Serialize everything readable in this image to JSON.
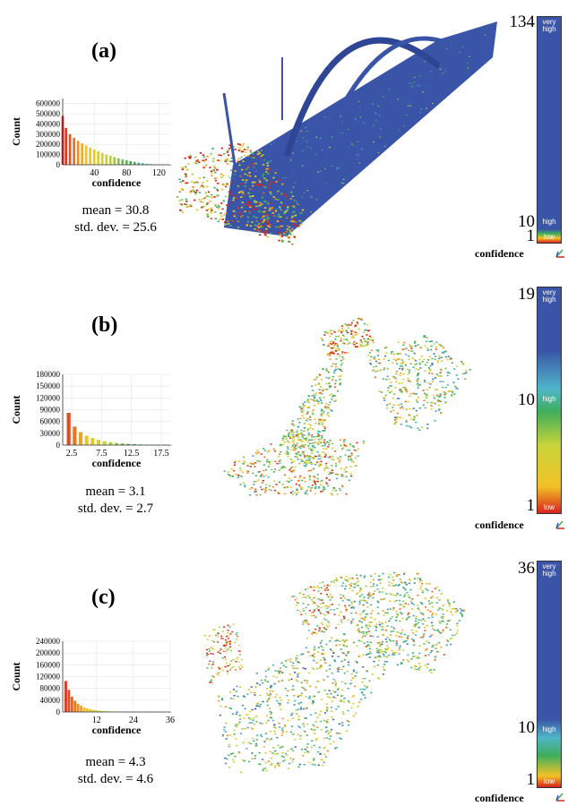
{
  "colors": {
    "high": "#3a55a8",
    "mid_high": "#4fb5c8",
    "mid": "#3fae5a",
    "mid_low": "#c8d43a",
    "low_yellow": "#f2c227",
    "low": "#d8231d",
    "cloud_edge": "#b8261c"
  },
  "colorbar_common": {
    "label": "confidence",
    "very_high_label": "very high",
    "high_label": "high",
    "low_label": "low"
  },
  "panels": [
    {
      "label": "(a)",
      "stats": {
        "mean": "mean = 30.8",
        "std": "std. dev. = 25.6"
      },
      "colorbar": {
        "max": "134",
        "mid": "10",
        "min": "1"
      },
      "scene": "bridge-arch"
    },
    {
      "label": "(b)",
      "stats": {
        "mean": "mean = 3.1",
        "std": "std. dev. = 2.7"
      },
      "colorbar": {
        "max": "19",
        "mid": "10",
        "min": "1"
      },
      "scene": "sparse"
    },
    {
      "label": "(c)",
      "stats": {
        "mean": "mean = 4.3",
        "std": "std. dev. = 4.6"
      },
      "colorbar": {
        "max": "36",
        "mid": "10",
        "min": "1"
      },
      "scene": "medium"
    }
  ],
  "chart_data": [
    {
      "type": "bar",
      "xlabel": "confidence",
      "ylabel": "Count",
      "xlim": [
        1,
        134
      ],
      "ylim": [
        0,
        650000
      ],
      "x_ticks": [
        40,
        80,
        120
      ],
      "y_ticks": [
        0,
        100000,
        200000,
        300000,
        400000,
        500000,
        600000
      ],
      "x": [
        1,
        5,
        10,
        15,
        20,
        25,
        30,
        35,
        40,
        45,
        50,
        55,
        60,
        65,
        70,
        75,
        80,
        85,
        90,
        95,
        100,
        105,
        110,
        115,
        120,
        125,
        130,
        134
      ],
      "values": [
        480000,
        360000,
        300000,
        265000,
        235000,
        210000,
        190000,
        170000,
        150000,
        132000,
        115000,
        100000,
        88000,
        75000,
        64000,
        54000,
        44000,
        36000,
        28000,
        21000,
        15000,
        10000,
        6000,
        3500,
        2000,
        1000,
        500,
        200
      ]
    },
    {
      "type": "bar",
      "xlabel": "confidence",
      "ylabel": "Count",
      "xlim": [
        1,
        19
      ],
      "ylim": [
        0,
        180000
      ],
      "x_ticks": [
        2.5,
        7.5,
        12.5,
        17.5
      ],
      "y_ticks": [
        0,
        30000,
        60000,
        90000,
        120000,
        150000,
        180000
      ],
      "x": [
        2,
        3,
        4,
        5,
        6,
        7,
        8,
        9,
        10,
        11,
        12,
        13,
        14,
        15,
        16,
        17,
        18,
        19
      ],
      "values": [
        82000,
        47000,
        33000,
        24000,
        18000,
        13500,
        10000,
        7500,
        5500,
        4000,
        3000,
        2200,
        1600,
        1200,
        900,
        600,
        400,
        250
      ]
    },
    {
      "type": "bar",
      "xlabel": "confidence",
      "ylabel": "Count",
      "xlim": [
        1,
        36
      ],
      "ylim": [
        0,
        240000
      ],
      "x_ticks": [
        12,
        24,
        36
      ],
      "y_ticks": [
        0,
        40000,
        80000,
        120000,
        160000,
        200000,
        240000
      ],
      "x": [
        2,
        3,
        4,
        5,
        6,
        7,
        8,
        9,
        10,
        11,
        12,
        13,
        14,
        15,
        16,
        17,
        18,
        20,
        22,
        24,
        26,
        28,
        30,
        32,
        34,
        36
      ],
      "values": [
        105000,
        75000,
        52000,
        38000,
        28000,
        21000,
        16000,
        12000,
        9000,
        7000,
        5500,
        4300,
        3400,
        2700,
        2100,
        1700,
        1300,
        900,
        600,
        400,
        300,
        200,
        150,
        100,
        60,
        40
      ]
    }
  ]
}
